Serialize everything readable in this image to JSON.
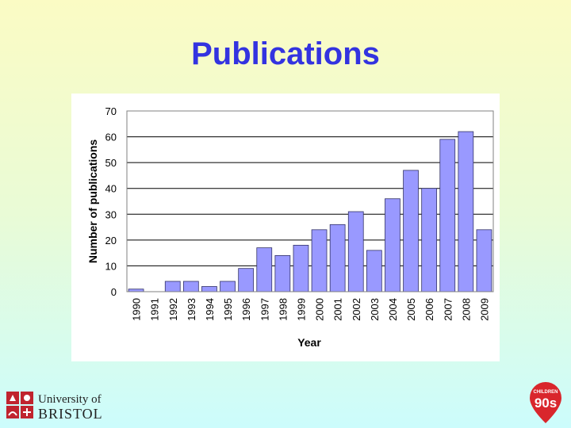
{
  "slide": {
    "title": "Publications"
  },
  "logos": {
    "bristol": {
      "line1": "University of",
      "line2": "BRISTOL",
      "accent": "#c0242e"
    },
    "children_of_the_90s": {
      "top": "CHILDREN",
      "main": "90s",
      "color": "#d9262c"
    }
  },
  "chart_data": {
    "type": "bar",
    "title": "",
    "xlabel": "Year",
    "ylabel": "Number of publications",
    "categories": [
      "1990",
      "1991",
      "1992",
      "1993",
      "1994",
      "1995",
      "1996",
      "1997",
      "1998",
      "1999",
      "2000",
      "2001",
      "2002",
      "2003",
      "2004",
      "2005",
      "2006",
      "2007",
      "2008",
      "2009"
    ],
    "values": [
      1,
      0,
      4,
      4,
      2,
      4,
      9,
      17,
      14,
      18,
      24,
      26,
      31,
      16,
      36,
      47,
      40,
      59,
      62,
      24
    ],
    "ylim": [
      0,
      70
    ],
    "yticks": [
      0,
      10,
      20,
      30,
      40,
      50,
      60,
      70
    ],
    "grid": true,
    "legend": "none",
    "bar_color": "#9999ff",
    "bar_stroke": "#333366"
  }
}
